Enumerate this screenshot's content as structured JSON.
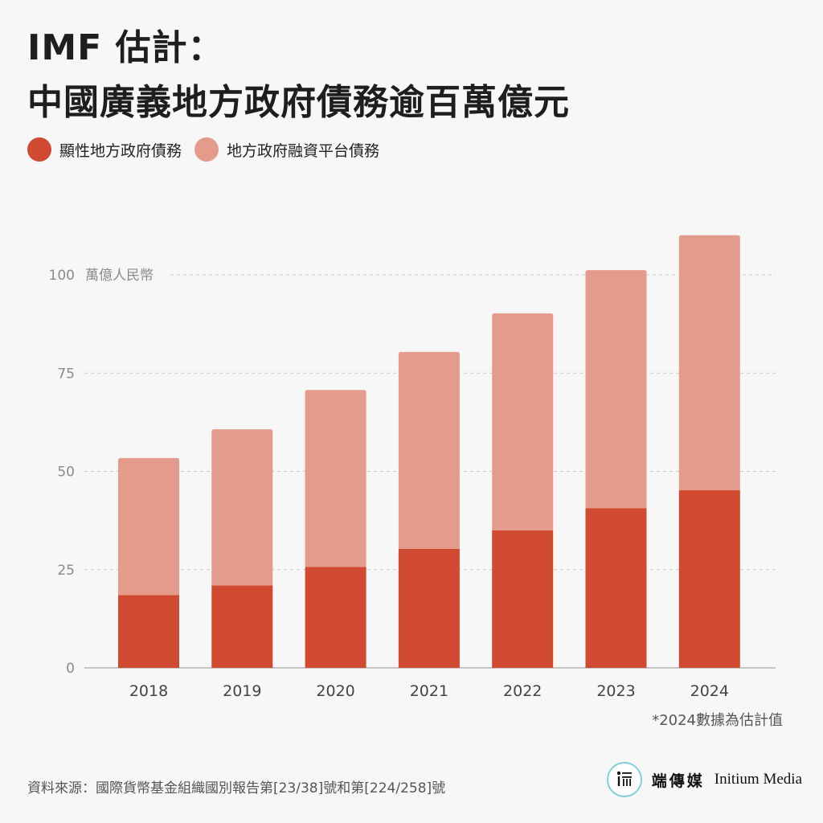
{
  "title_lines": [
    "IMF 估計：",
    "中國廣義地方政府債務逾百萬億元"
  ],
  "colors": {
    "explicit": "#cf4a30",
    "lgfv": "#e49b8b",
    "grid": "#c8c8c8",
    "axis_text": "#8a8a8a"
  },
  "legend": [
    {
      "label": "顯性地方政府債務",
      "color": "#cf4a30"
    },
    {
      "label": "地方政府融資平台債務",
      "color": "#e49b8b"
    }
  ],
  "chart_data": {
    "type": "bar",
    "stacked": true,
    "categories": [
      "2018",
      "2019",
      "2020",
      "2021",
      "2022",
      "2023",
      "2024"
    ],
    "series": [
      {
        "name": "顯性地方政府債務",
        "values": [
          18.5,
          21.0,
          25.7,
          30.3,
          35.0,
          40.6,
          45.2
        ]
      },
      {
        "name": "地方政府融資平台債務",
        "values": [
          34.9,
          39.7,
          45.0,
          50.1,
          55.2,
          60.6,
          64.9
        ]
      }
    ],
    "ylim": [
      0,
      112
    ],
    "yticks": [
      0,
      25,
      50,
      75,
      100
    ],
    "unit_label": "萬億人民幣",
    "grid": true
  },
  "footnote": "*2024數據為估計值",
  "source": "資料來源：國際貨幣基金組織國別報告第[23/38]號和第[224/258]號",
  "brand": {
    "logo_text": "端",
    "name_cn": "端傳媒",
    "name_en": "Initium Media"
  }
}
